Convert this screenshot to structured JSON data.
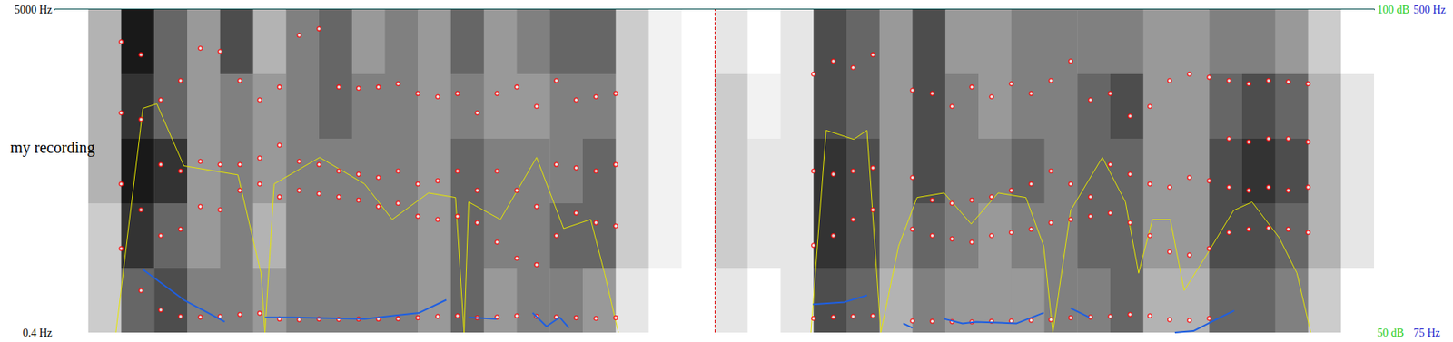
{
  "chart_data": {
    "type": "spectrogram",
    "title": "my recording",
    "xlim": [
      0,
      2.0
    ],
    "ylim": [
      0.4,
      5000
    ],
    "yticks": [
      {
        "value": 0.4,
        "label": "0.4 Hz"
      },
      {
        "value": 5000,
        "label": "5000 Hz"
      }
    ],
    "y2lim": [
      50,
      100
    ],
    "y2ticks": [
      {
        "value": 50,
        "label": "50 dB"
      },
      {
        "value": 100,
        "label": "100 dB"
      }
    ],
    "y3lim": [
      75,
      500
    ],
    "y3ticks": [
      {
        "value": 75,
        "label": "75 Hz"
      },
      {
        "value": 500,
        "label": "500 Hz"
      }
    ],
    "tick_labels": "y",
    "grid": false,
    "cursor": 0.998,
    "spectrogram": {
      "times": [
        0,
        0.05,
        0.1,
        0.15,
        0.2,
        0.25,
        0.3,
        0.35,
        0.4,
        0.45,
        0.5,
        0.55,
        0.6,
        0.65,
        0.7,
        0.75,
        0.8,
        0.85,
        0.9,
        0.95,
        1.0,
        1.05,
        1.1,
        1.15,
        1.2,
        1.25,
        1.3,
        1.35,
        1.4,
        1.45,
        1.5,
        1.55,
        1.6,
        1.65,
        1.7,
        1.75,
        1.8,
        1.85,
        1.9,
        1.95,
        2.0
      ],
      "frequencies": [
        0.4,
        1000,
        2000,
        3000,
        4000,
        5000
      ],
      "levels": [
        [
          0,
          0,
          0,
          0,
          0
        ],
        [
          0.2,
          0.2,
          0.3,
          0.3,
          0.3
        ],
        [
          0.6,
          0.8,
          0.9,
          0.8,
          0.9
        ],
        [
          0.7,
          0.6,
          0.8,
          0.6,
          0.6
        ],
        [
          0.5,
          0.4,
          0.4,
          0.4,
          0.4
        ],
        [
          0.5,
          0.5,
          0.5,
          0.5,
          0.7
        ],
        [
          0.4,
          0.3,
          0.4,
          0.4,
          0.3
        ],
        [
          0.5,
          0.5,
          0.5,
          0.5,
          0.5
        ],
        [
          0.5,
          0.5,
          0.5,
          0.6,
          0.6
        ],
        [
          0.5,
          0.5,
          0.5,
          0.5,
          0.4
        ],
        [
          0.5,
          0.5,
          0.5,
          0.5,
          0.5
        ],
        [
          0.4,
          0.4,
          0.4,
          0.4,
          0.4
        ],
        [
          0.6,
          0.6,
          0.6,
          0.5,
          0.6
        ],
        [
          0.4,
          0.5,
          0.5,
          0.4,
          0.4
        ],
        [
          0.5,
          0.5,
          0.5,
          0.4,
          0.5
        ],
        [
          0.5,
          0.6,
          0.5,
          0.5,
          0.6
        ],
        [
          0.4,
          0.6,
          0.6,
          0.5,
          0.6
        ],
        [
          0.1,
          0.2,
          0.2,
          0.2,
          0.2
        ],
        [
          0,
          0.05,
          0.05,
          0.05,
          0.05
        ],
        [
          0,
          0,
          0,
          0,
          0
        ],
        [
          0.1,
          0.2,
          0.2,
          0.2,
          0.1
        ],
        [
          0,
          0.1,
          0.1,
          0.05,
          0
        ],
        [
          0.1,
          0.1,
          0.1,
          0.1,
          0.1
        ],
        [
          0.7,
          0.8,
          0.8,
          0.7,
          0.7
        ],
        [
          0.6,
          0.7,
          0.7,
          0.6,
          0.6
        ],
        [
          0.3,
          0.4,
          0.4,
          0.4,
          0.4
        ],
        [
          0.5,
          0.6,
          0.7,
          0.7,
          0.7
        ],
        [
          0.4,
          0.5,
          0.5,
          0.5,
          0.4
        ],
        [
          0.4,
          0.4,
          0.5,
          0.4,
          0.4
        ],
        [
          0.4,
          0.5,
          0.6,
          0.5,
          0.5
        ],
        [
          0.5,
          0.5,
          0.5,
          0.5,
          0.5
        ],
        [
          0.5,
          0.6,
          0.6,
          0.6,
          0.5
        ],
        [
          0.6,
          0.6,
          0.6,
          0.7,
          0.5
        ],
        [
          0.3,
          0.4,
          0.4,
          0.4,
          0.4
        ],
        [
          0.3,
          0.4,
          0.4,
          0.4,
          0.4
        ],
        [
          0.6,
          0.7,
          0.7,
          0.6,
          0.5
        ],
        [
          0.6,
          0.7,
          0.8,
          0.7,
          0.5
        ],
        [
          0.5,
          0.6,
          0.7,
          0.6,
          0.4
        ],
        [
          0.2,
          0.3,
          0.3,
          0.3,
          0.2
        ],
        [
          0,
          0.1,
          0.1,
          0.1,
          0
        ]
      ]
    },
    "series": [
      {
        "type": "scatter",
        "color": "#ff0000",
        "marker": "circle",
        "x": [
          0.1,
          0.13,
          0.16,
          0.19,
          0.22,
          0.25,
          0.28,
          0.31,
          0.34,
          0.37,
          0.4,
          0.43,
          0.46,
          0.49,
          0.52,
          0.55,
          0.58,
          0.61,
          0.64,
          0.67,
          0.7,
          0.73,
          0.76,
          0.79,
          0.82,
          0.85,
          1.15,
          1.18,
          1.21,
          1.24,
          1.27,
          1.3,
          1.33,
          1.36,
          1.39,
          1.42,
          1.45,
          1.48,
          1.51,
          1.54,
          1.57,
          1.6,
          1.63,
          1.66,
          1.69,
          1.72,
          1.75,
          1.78,
          1.81,
          1.84,
          1.87,
          1.9
        ],
        "values": [
          [
            1300,
            2300,
            3400,
            4500
          ],
          [
            650,
            1900,
            3300,
            4300
          ],
          [
            350,
            1500,
            2600,
            3600
          ],
          [
            250,
            1600,
            2500,
            3900
          ],
          [
            240,
            1950,
            2650,
            4400
          ],
          [
            250,
            1900,
            2600,
            4350
          ],
          [
            280,
            2200,
            2600,
            3900
          ],
          [
            300,
            2300,
            2700,
            3600
          ],
          [
            210,
            2100,
            2900,
            3800
          ],
          [
            200,
            2200,
            2650,
            4600
          ],
          [
            210,
            2150,
            2600,
            4700
          ],
          [
            205,
            2100,
            2500,
            3800
          ],
          [
            210,
            2050,
            2450,
            3780
          ],
          [
            210,
            1950,
            2400,
            3800
          ],
          [
            215,
            2000,
            2500,
            3850
          ],
          [
            230,
            1800,
            2300,
            3700
          ],
          [
            250,
            1750,
            2350,
            3650
          ],
          [
            260,
            1800,
            2500,
            3700
          ],
          [
            230,
            1700,
            2200,
            3400
          ],
          [
            240,
            1400,
            2500,
            3700
          ],
          [
            260,
            1150,
            2200,
            3800
          ],
          [
            250,
            1050,
            1950,
            3500
          ],
          [
            240,
            1500,
            2600,
            3900
          ],
          [
            230,
            1850,
            2550,
            3600
          ],
          [
            220,
            1700,
            2500,
            3650
          ],
          [
            230,
            1650,
            2600,
            3700
          ],
          [
            220,
            1350,
            2500,
            4000
          ],
          [
            240,
            1500,
            2450,
            4200
          ],
          [
            250,
            1750,
            2500,
            4100
          ],
          [
            260,
            1900,
            2550,
            4300
          ],
          [
            null,
            null,
            null,
            null
          ],
          [
            180,
            1600,
            2400,
            3750
          ],
          [
            175,
            1500,
            2050,
            3700
          ],
          [
            170,
            1450,
            2000,
            3500
          ],
          [
            165,
            1400,
            2050,
            3800
          ],
          [
            175,
            1500,
            2100,
            3650
          ],
          [
            180,
            1550,
            2200,
            3850
          ],
          [
            190,
            1600,
            2300,
            3700
          ],
          [
            200,
            1700,
            2500,
            3900
          ],
          [
            230,
            1750,
            2300,
            4200
          ],
          [
            240,
            1800,
            2100,
            3600
          ],
          [
            250,
            1850,
            2600,
            3700
          ],
          [
            280,
            1700,
            2450,
            3350
          ],
          [
            260,
            1500,
            2300,
            3500
          ],
          [
            200,
            1250,
            2250,
            3900
          ],
          [
            190,
            1200,
            2400,
            4000
          ],
          [
            220,
            1300,
            2350,
            3950
          ],
          [
            1550,
            2250,
            3000,
            3900
          ],
          [
            1600,
            2200,
            2950,
            3850
          ],
          [
            1620,
            2250,
            3000,
            3900
          ],
          [
            1600,
            2200,
            3000,
            3880
          ],
          [
            1550,
            2250,
            2950,
            3850
          ]
        ]
      },
      {
        "type": "line",
        "axis": "y2",
        "color": "#e6e600",
        "x": [
          0.092,
          0.133,
          0.154,
          0.195,
          0.236,
          0.277,
          0.312,
          0.318,
          0.332,
          0.401,
          0.469,
          0.511,
          0.566,
          0.607,
          0.62,
          0.627,
          0.675,
          0.73,
          0.771,
          0.812,
          0.833,
          0.854,
          1.0,
          1.146,
          1.169,
          1.211,
          1.231,
          1.252,
          1.279,
          1.307,
          1.348,
          1.389,
          1.43,
          1.472,
          1.499,
          1.513,
          1.54,
          1.568,
          1.588,
          1.623,
          1.643,
          1.664,
          1.691,
          1.712,
          1.746,
          1.787,
          1.815,
          1.856,
          1.883,
          1.904
        ],
        "values": [
          50,
          84.7,
          85.4,
          75.8,
          75.1,
          74.4,
          59.2,
          50,
          73,
          77.1,
          73,
          67.5,
          71.6,
          70.9,
          50,
          70.2,
          67.5,
          77.1,
          66.1,
          67.5,
          59.2,
          50,
          null,
          50,
          81.3,
          79.9,
          81.3,
          50,
          63.4,
          70.9,
          71.6,
          66.8,
          71.6,
          70.9,
          63.4,
          50,
          68.9,
          73.7,
          77.1,
          70.2,
          59.2,
          67.5,
          67.5,
          56.5,
          62,
          68.9,
          70.2,
          64.7,
          59.2,
          50
        ]
      },
      {
        "type": "line",
        "axis": "y3",
        "color": "#1f5fe0",
        "x": [
          0.133,
          0.195,
          0.257,
          0.28,
          0.318,
          0.36,
          0.469,
          0.552,
          0.593,
          0.61,
          0.627,
          0.669,
          0.7,
          0.724,
          0.745,
          0.765,
          0.779,
          0.9,
          1.149,
          1.197,
          1.231,
          1.26,
          1.286,
          1.3,
          1.31,
          1.348,
          1.376,
          1.396,
          1.458,
          1.499,
          1.52,
          1.54,
          1.568,
          1.6,
          1.698,
          1.726,
          1.767,
          1.788
        ],
        "values": [
          158,
          118,
          89,
          null,
          95,
          95,
          93,
          101,
          118,
          null,
          95,
          93,
          null,
          101,
          83,
          95,
          81,
          null,
          112,
          115,
          124,
          null,
          87,
          81,
          null,
          93,
          87,
          89,
          87,
          101,
          null,
          107,
          95,
          null,
          75,
          77,
          95,
          104
        ]
      }
    ]
  }
}
